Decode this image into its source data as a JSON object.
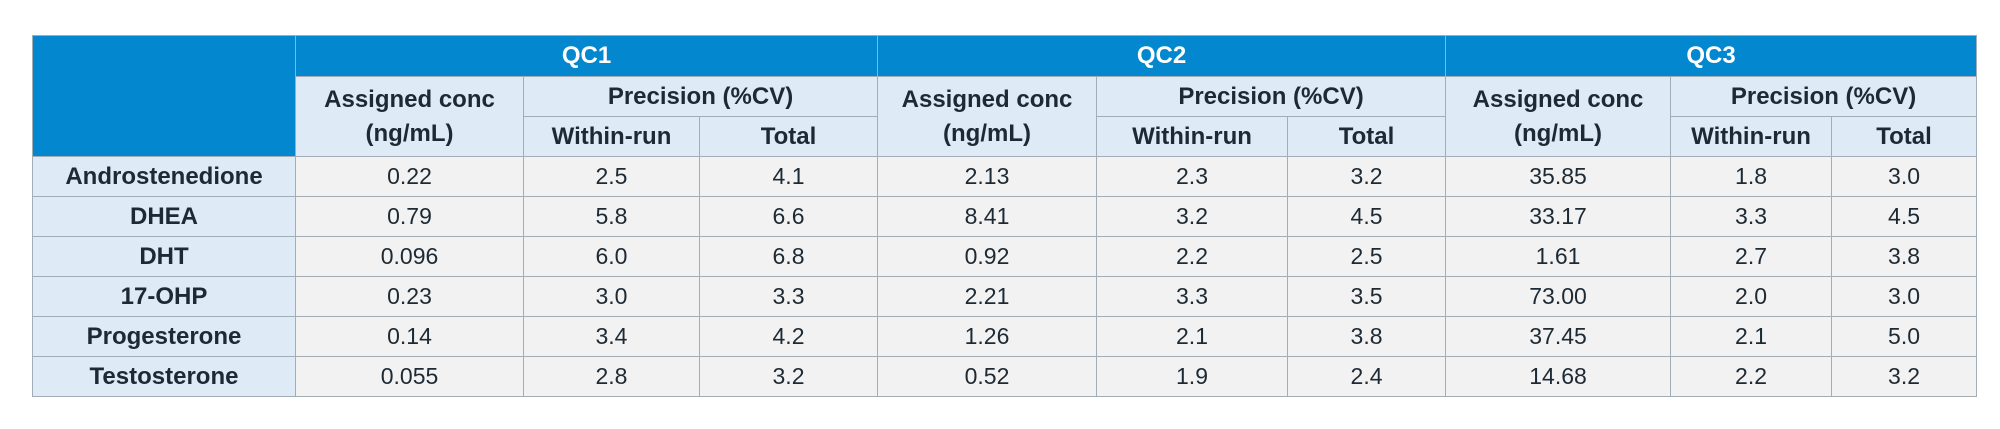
{
  "table": {
    "qc_groups": [
      "QC1",
      "QC2",
      "QC3"
    ],
    "assigned_conc_label_line1": "Assigned conc",
    "assigned_conc_label_line2": "(ng/mL)",
    "precision_label": "Precision (%CV)",
    "within_run_label": "Within-run",
    "total_label": "Total",
    "rows": [
      {
        "analyte": "Androstenedione",
        "values": [
          "0.22",
          "2.5",
          "4.1",
          "2.13",
          "2.3",
          "3.2",
          "35.85",
          "1.8",
          "3.0"
        ]
      },
      {
        "analyte": "DHEA",
        "values": [
          "0.79",
          "5.8",
          "6.6",
          "8.41",
          "3.2",
          "4.5",
          "33.17",
          "3.3",
          "4.5"
        ]
      },
      {
        "analyte": "DHT",
        "values": [
          "0.096",
          "6.0",
          "6.8",
          "0.92",
          "2.2",
          "2.5",
          "1.61",
          "2.7",
          "3.8"
        ]
      },
      {
        "analyte": "17-OHP",
        "values": [
          "0.23",
          "3.0",
          "3.3",
          "2.21",
          "3.3",
          "3.5",
          "73.00",
          "2.0",
          "3.0"
        ]
      },
      {
        "analyte": "Progesterone",
        "values": [
          "0.14",
          "3.4",
          "4.2",
          "1.26",
          "2.1",
          "3.8",
          "37.45",
          "2.1",
          "5.0"
        ]
      },
      {
        "analyte": "Testosterone",
        "values": [
          "0.055",
          "2.8",
          "3.2",
          "0.52",
          "1.9",
          "2.4",
          "14.68",
          "2.2",
          "3.2"
        ]
      }
    ]
  }
}
